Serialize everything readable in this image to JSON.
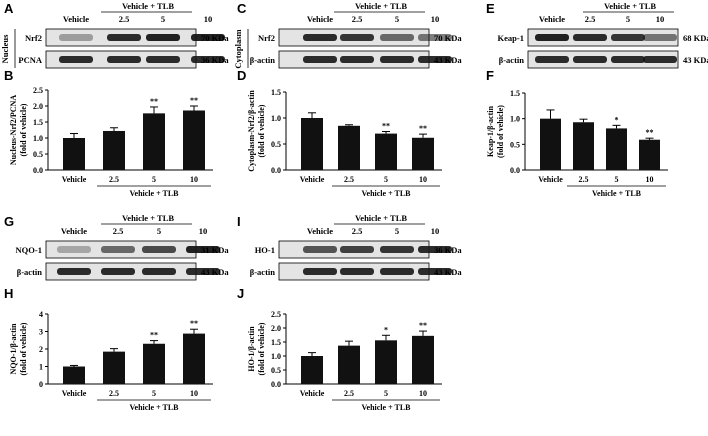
{
  "colors": {
    "bar": "#111111",
    "blot_bg": "#e4e4e4",
    "band": "#161616"
  },
  "panels": {
    "A": "A",
    "B": "B",
    "C": "C",
    "D": "D",
    "E": "E",
    "F": "F",
    "G": "G",
    "H": "H",
    "I": "I",
    "J": "J"
  },
  "blots": [
    {
      "id": "A",
      "lanes": [
        "Vehicle",
        "2.5",
        "5",
        "10"
      ],
      "group_label": "Vehicle + TLB",
      "side_label": "Nucleus",
      "rows": [
        {
          "name": "Nrf2",
          "kda": "70 KDa",
          "intensity": [
            0.35,
            0.9,
            0.95,
            0.95
          ]
        },
        {
          "name": "PCNA",
          "kda": "36 KDa",
          "intensity": [
            0.9,
            0.9,
            0.9,
            0.9
          ]
        }
      ]
    },
    {
      "id": "C",
      "lanes": [
        "Vehicle",
        "2.5",
        "5",
        "10"
      ],
      "group_label": "Vehicle + TLB",
      "side_label": "Cytoplasm",
      "rows": [
        {
          "name": "Nrf2",
          "kda": "70 KDa",
          "intensity": [
            0.9,
            0.85,
            0.6,
            0.55
          ]
        },
        {
          "name": "β-actin",
          "kda": "43 KDa",
          "intensity": [
            0.9,
            0.9,
            0.9,
            0.9
          ]
        }
      ]
    },
    {
      "id": "E",
      "lanes": [
        "Vehicle",
        "2.5",
        "5",
        "10"
      ],
      "group_label": "Vehicle + TLB",
      "side_label": "",
      "rows": [
        {
          "name": "Keap-1",
          "kda": "68 KDa",
          "intensity": [
            0.95,
            0.9,
            0.85,
            0.55
          ]
        },
        {
          "name": "β-actin",
          "kda": "43 KDa",
          "intensity": [
            0.9,
            0.9,
            0.9,
            0.9
          ]
        }
      ]
    },
    {
      "id": "G",
      "lanes": [
        "Vehicle",
        "2.5",
        "5",
        "10"
      ],
      "group_label": "Vehicle + TLB",
      "side_label": "",
      "rows": [
        {
          "name": "NQO-1",
          "kda": "31 KDa",
          "intensity": [
            0.3,
            0.6,
            0.75,
            0.95
          ]
        },
        {
          "name": "β-actin",
          "kda": "43 KDa",
          "intensity": [
            0.9,
            0.9,
            0.9,
            0.9
          ]
        }
      ]
    },
    {
      "id": "I",
      "lanes": [
        "Vehicle",
        "2.5",
        "5",
        "10"
      ],
      "group_label": "Vehicle + TLB",
      "side_label": "",
      "rows": [
        {
          "name": "HO-1",
          "kda": "36 KDa",
          "intensity": [
            0.7,
            0.8,
            0.85,
            0.9
          ]
        },
        {
          "name": "β-actin",
          "kda": "43 KDa",
          "intensity": [
            0.9,
            0.9,
            0.9,
            0.9
          ]
        }
      ]
    }
  ],
  "chart_data": [
    {
      "id": "B",
      "type": "bar",
      "categories": [
        "Vehicle",
        "2.5",
        "5",
        "10"
      ],
      "values": [
        1.0,
        1.22,
        1.77,
        1.86
      ],
      "errors": [
        0.14,
        0.1,
        0.2,
        0.14
      ],
      "significance": [
        "",
        "",
        "**",
        "**"
      ],
      "group_label": "Vehicle + TLB",
      "ylabel": [
        "Nucleus-Nrf2/PCNA",
        "(fold of vehicle)"
      ],
      "ylim": [
        0,
        2.5
      ],
      "yticks": [
        "0.0",
        "0.5",
        "1.0",
        "1.5",
        "2.0",
        "2.5"
      ]
    },
    {
      "id": "D",
      "type": "bar",
      "categories": [
        "Vehicle",
        "2.5",
        "5",
        "10"
      ],
      "values": [
        1.0,
        0.85,
        0.7,
        0.62
      ],
      "errors": [
        0.1,
        0.02,
        0.04,
        0.07
      ],
      "significance": [
        "",
        "",
        "**",
        "**"
      ],
      "group_label": "Vehicle + TLB",
      "ylabel": [
        "Cytoplasm-Nrf2/β-actin",
        "(fold of vehicle)"
      ],
      "ylim": [
        0,
        1.5
      ],
      "yticks": [
        "0.0",
        "0.5",
        "1.0",
        "1.5"
      ]
    },
    {
      "id": "F",
      "type": "bar",
      "categories": [
        "Vehicle",
        "2.5",
        "5",
        "10"
      ],
      "values": [
        1.0,
        0.93,
        0.81,
        0.59
      ],
      "errors": [
        0.17,
        0.06,
        0.06,
        0.03
      ],
      "significance": [
        "",
        "",
        "*",
        "**"
      ],
      "group_label": "Vehicle + TLB",
      "ylabel": [
        "Keap-1/β-actin",
        "(fold of vehicle)"
      ],
      "ylim": [
        0,
        1.5
      ],
      "yticks": [
        "0.0",
        "0.5",
        "1.0",
        "1.5"
      ]
    },
    {
      "id": "H",
      "type": "bar",
      "categories": [
        "Vehicle",
        "2.5",
        "5",
        "10"
      ],
      "values": [
        1.0,
        1.85,
        2.3,
        2.88
      ],
      "errors": [
        0.06,
        0.17,
        0.18,
        0.25
      ],
      "significance": [
        "",
        "",
        "**",
        "**"
      ],
      "group_label": "Vehicle + TLB",
      "ylabel": [
        "NQO-1/β-actin",
        "(fold of vehicle)"
      ],
      "ylim": [
        0,
        4
      ],
      "yticks": [
        "0",
        "1",
        "2",
        "3",
        "4"
      ]
    },
    {
      "id": "J",
      "type": "bar",
      "categories": [
        "Vehicle",
        "2.5",
        "5",
        "10"
      ],
      "values": [
        1.0,
        1.37,
        1.56,
        1.72
      ],
      "errors": [
        0.12,
        0.16,
        0.18,
        0.17
      ],
      "significance": [
        "",
        "",
        "*",
        "**"
      ],
      "group_label": "Vehicle + TLB",
      "ylabel": [
        "HO-1/β-actin",
        "(fold of vehicle)"
      ],
      "ylim": [
        0,
        2.5
      ],
      "yticks": [
        "0.0",
        "0.5",
        "1.0",
        "1.5",
        "2.0",
        "2.5"
      ]
    }
  ]
}
